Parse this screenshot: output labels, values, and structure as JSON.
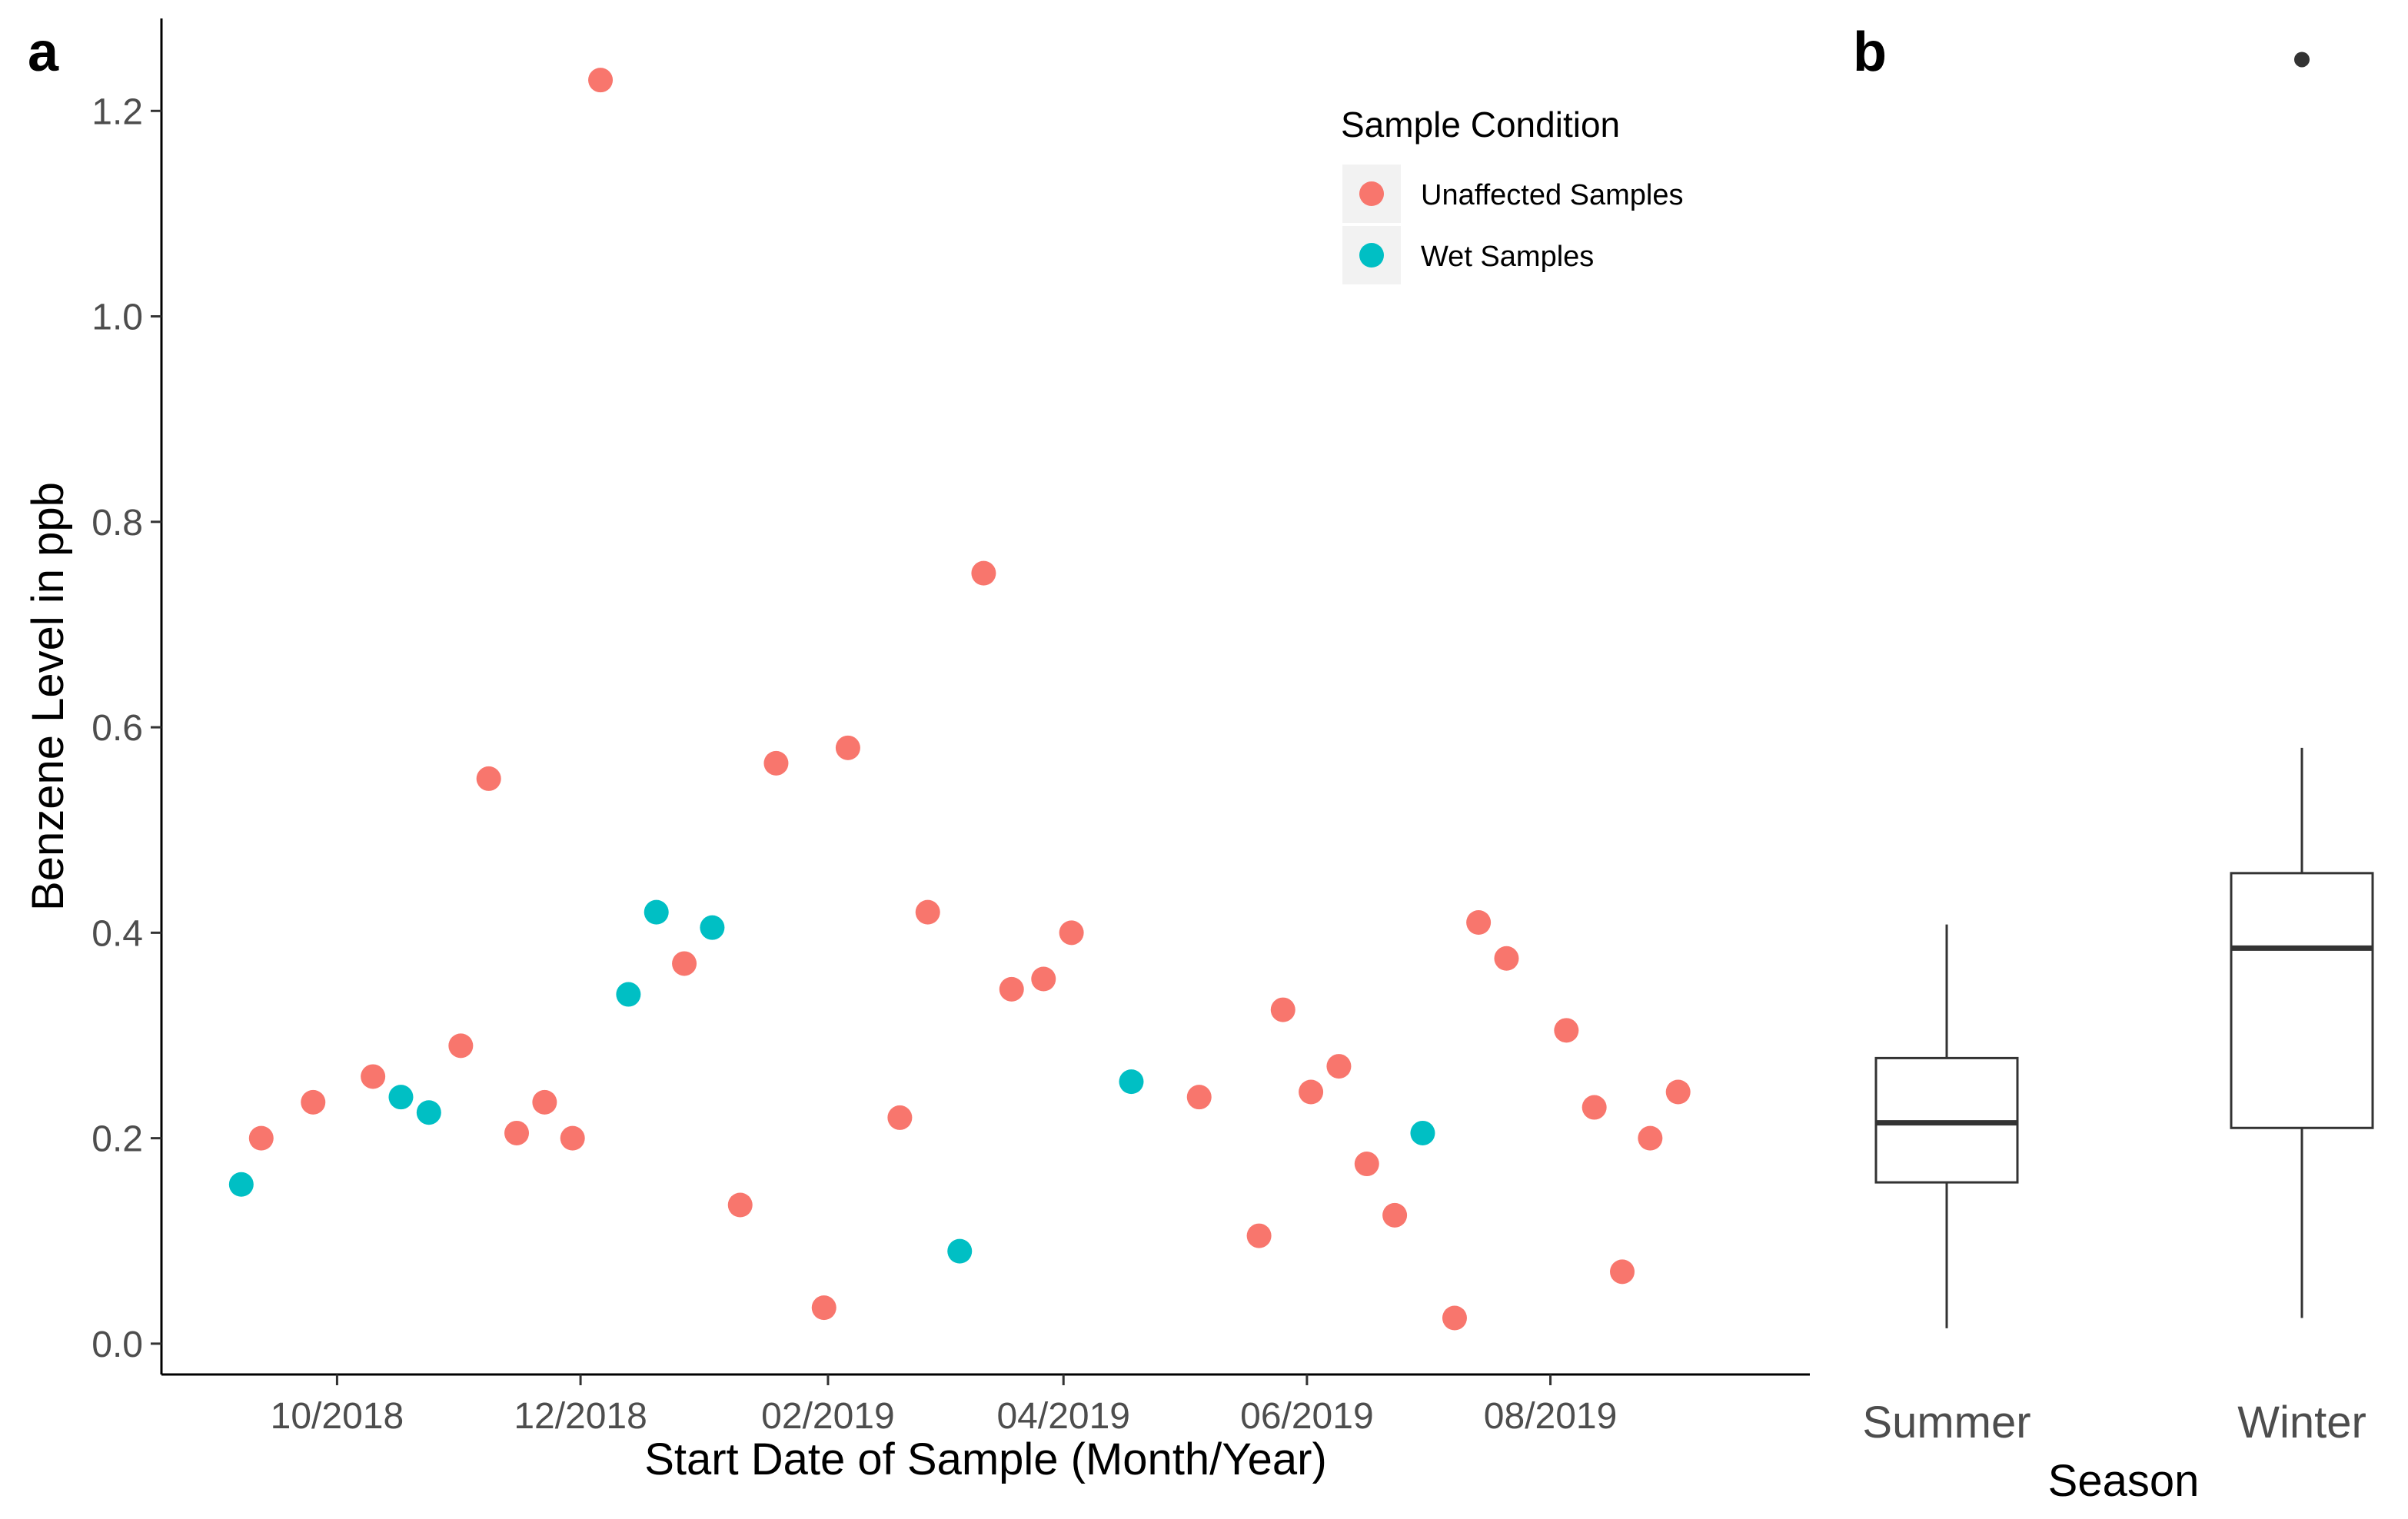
{
  "chart_data": [
    {
      "panel_label": "a",
      "type": "scatter",
      "xlabel": "Start Date of Sample (Month/Year)",
      "ylabel": "Benzene Level in ppb",
      "ylim": [
        -0.03,
        1.29
      ],
      "xlim": [
        "2018-08-18",
        "2019-10-05"
      ],
      "x_ticks": [
        {
          "date": "2018-10-01",
          "label": "10/2018"
        },
        {
          "date": "2018-12-01",
          "label": "12/2018"
        },
        {
          "date": "2019-02-01",
          "label": "02/2019"
        },
        {
          "date": "2019-04-01",
          "label": "04/2019"
        },
        {
          "date": "2019-06-01",
          "label": "06/2019"
        },
        {
          "date": "2019-08-01",
          "label": "08/2019"
        }
      ],
      "y_ticks": [
        {
          "value": 0.0,
          "label": "0.0"
        },
        {
          "value": 0.2,
          "label": "0.2"
        },
        {
          "value": 0.4,
          "label": "0.4"
        },
        {
          "value": 0.6,
          "label": "0.6"
        },
        {
          "value": 0.8,
          "label": "0.8"
        },
        {
          "value": 1.0,
          "label": "1.0"
        },
        {
          "value": 1.2,
          "label": "1.2"
        }
      ],
      "grid": false,
      "legend": {
        "title": "Sample Condition",
        "position": "top-right"
      },
      "series": [
        {
          "name": "Unaffected Samples",
          "color": "#F8766D",
          "points": [
            {
              "x": "2018-09-12",
              "y": 0.2
            },
            {
              "x": "2018-09-25",
              "y": 0.235
            },
            {
              "x": "2018-10-10",
              "y": 0.26
            },
            {
              "x": "2018-11-01",
              "y": 0.29
            },
            {
              "x": "2018-11-08",
              "y": 0.55
            },
            {
              "x": "2018-11-15",
              "y": 0.205
            },
            {
              "x": "2018-11-22",
              "y": 0.235
            },
            {
              "x": "2018-11-29",
              "y": 0.2
            },
            {
              "x": "2018-12-06",
              "y": 1.23
            },
            {
              "x": "2018-12-27",
              "y": 0.37
            },
            {
              "x": "2019-01-10",
              "y": 0.135
            },
            {
              "x": "2019-01-19",
              "y": 0.565
            },
            {
              "x": "2019-01-31",
              "y": 0.035
            },
            {
              "x": "2019-02-06",
              "y": 0.58
            },
            {
              "x": "2019-02-19",
              "y": 0.22
            },
            {
              "x": "2019-02-26",
              "y": 0.42
            },
            {
              "x": "2019-03-12",
              "y": 0.75
            },
            {
              "x": "2019-03-19",
              "y": 0.345
            },
            {
              "x": "2019-03-27",
              "y": 0.355
            },
            {
              "x": "2019-04-03",
              "y": 0.4
            },
            {
              "x": "2019-05-05",
              "y": 0.24
            },
            {
              "x": "2019-05-20",
              "y": 0.105
            },
            {
              "x": "2019-05-26",
              "y": 0.325
            },
            {
              "x": "2019-06-02",
              "y": 0.245
            },
            {
              "x": "2019-06-09",
              "y": 0.27
            },
            {
              "x": "2019-06-16",
              "y": 0.175
            },
            {
              "x": "2019-06-23",
              "y": 0.125
            },
            {
              "x": "2019-07-08",
              "y": 0.025
            },
            {
              "x": "2019-07-14",
              "y": 0.41
            },
            {
              "x": "2019-07-21",
              "y": 0.375
            },
            {
              "x": "2019-08-05",
              "y": 0.305
            },
            {
              "x": "2019-08-12",
              "y": 0.23
            },
            {
              "x": "2019-08-19",
              "y": 0.07
            },
            {
              "x": "2019-08-26",
              "y": 0.2
            },
            {
              "x": "2019-09-02",
              "y": 0.245
            }
          ]
        },
        {
          "name": "Wet Samples",
          "color": "#00BFC4",
          "points": [
            {
              "x": "2018-09-07",
              "y": 0.155
            },
            {
              "x": "2018-10-17",
              "y": 0.24
            },
            {
              "x": "2018-10-24",
              "y": 0.225
            },
            {
              "x": "2018-12-13",
              "y": 0.34
            },
            {
              "x": "2018-12-20",
              "y": 0.42
            },
            {
              "x": "2019-01-03",
              "y": 0.405
            },
            {
              "x": "2019-03-06",
              "y": 0.09
            },
            {
              "x": "2019-04-18",
              "y": 0.255
            },
            {
              "x": "2019-06-30",
              "y": 0.205
            }
          ]
        }
      ]
    },
    {
      "panel_label": "b",
      "type": "box",
      "xlabel": "Season",
      "categories": [
        "Summer",
        "Winter"
      ],
      "ylim": [
        -0.03,
        1.29
      ],
      "grid": false,
      "boxes": [
        {
          "category": "Summer",
          "min": 0.015,
          "q1": 0.157,
          "median": 0.215,
          "q3": 0.278,
          "max": 0.408,
          "outliers": []
        },
        {
          "category": "Winter",
          "min": 0.025,
          "q1": 0.21,
          "median": 0.385,
          "q3": 0.458,
          "max": 0.58,
          "outliers": [
            1.25
          ]
        }
      ]
    }
  ]
}
